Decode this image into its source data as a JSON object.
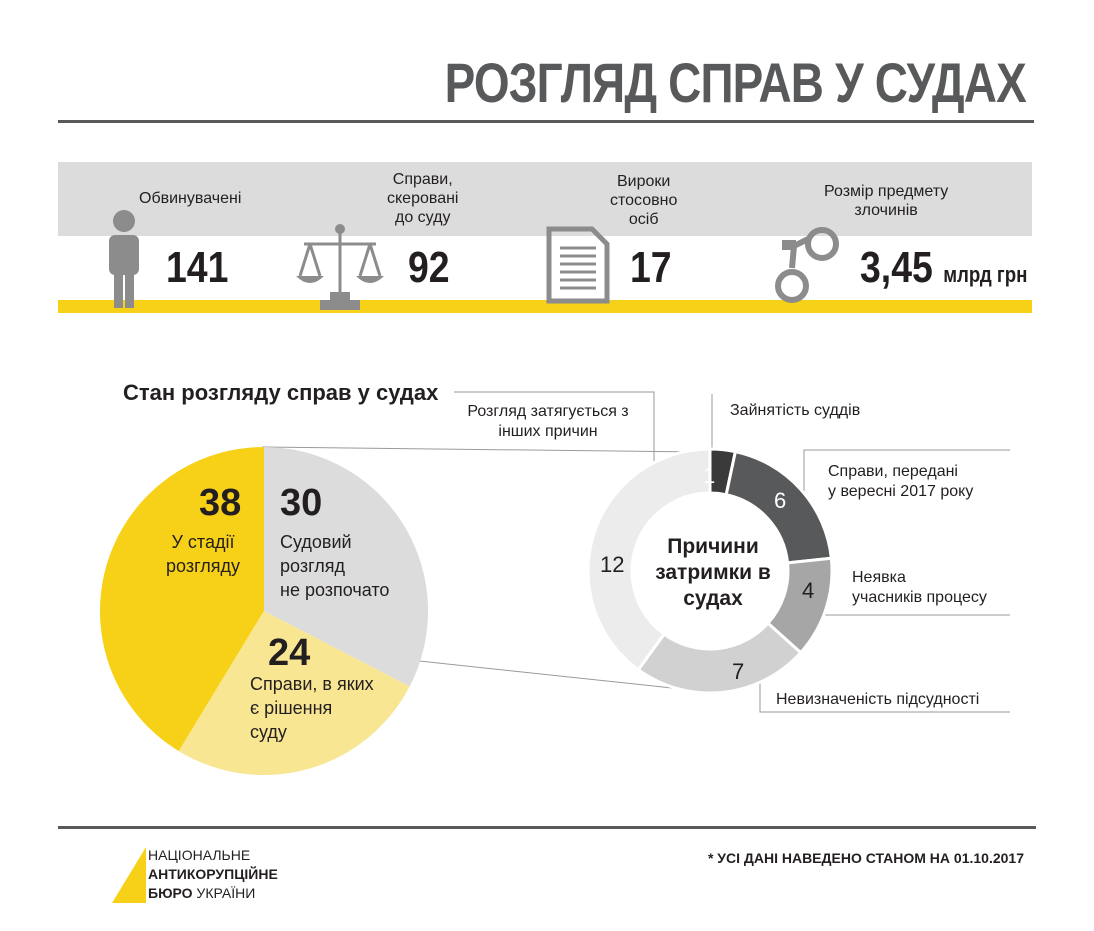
{
  "title": "РОЗГЛЯД СПРАВ У СУДАХ",
  "stats": [
    {
      "label": "Обвинувачені",
      "value": "141",
      "icon": "person-icon"
    },
    {
      "label_lines": [
        "Справи,",
        "скеровані",
        "до суду"
      ],
      "value": "92",
      "icon": "scales-icon"
    },
    {
      "label_lines": [
        "Вироки",
        "стосовно",
        "осіб"
      ],
      "value": "17",
      "icon": "document-icon"
    },
    {
      "label_lines": [
        "Розмір предмету",
        "злочинів"
      ],
      "value": "3,45",
      "unit": "млрд грн",
      "icon": "handcuffs-icon"
    }
  ],
  "colors": {
    "yellow": "#f7d117",
    "light_yellow": "#f8e693",
    "light_gray": "#dcdcdc",
    "band_gray": "#dcdcdc",
    "dark": "#58595b",
    "donut_palest": "#ececec",
    "donut_light": "#d1d1d1",
    "donut_mid": "#a6a6a6",
    "donut_dark": "#58595b",
    "donut_darkest": "#3a3a3a"
  },
  "chart_data": [
    {
      "type": "pie",
      "title": "Стан розгляду справ у судах",
      "slices": [
        {
          "value": 38,
          "label_lines": [
            "У стадії",
            "розгляду"
          ],
          "color": "#f7d117"
        },
        {
          "value": 30,
          "label_lines": [
            "Судовий",
            "розгляд",
            "не розпочато"
          ],
          "color": "#dcdcdc"
        },
        {
          "value": 24,
          "label_lines": [
            "Справи, в яких",
            "є рішення",
            "суду"
          ],
          "color": "#f8e693"
        }
      ]
    },
    {
      "type": "pie",
      "subtype": "donut",
      "center_label_lines": [
        "Причини",
        "затримки в",
        "судах"
      ],
      "slices": [
        {
          "value": 1,
          "label": "Зайнятість суддів",
          "color": "#3a3a3a"
        },
        {
          "value": 6,
          "label_lines": [
            "Справи, передані",
            "у вересні 2017 року"
          ],
          "color": "#58595b"
        },
        {
          "value": 4,
          "label_lines": [
            "Неявка",
            "учасників процесу"
          ],
          "color": "#a6a6a6"
        },
        {
          "value": 7,
          "label": "Невизначеність підсудності",
          "color": "#d1d1d1"
        },
        {
          "value": 12,
          "label_lines": [
            "Розгляд затягується з",
            "інших причин"
          ],
          "color": "#ececec"
        }
      ]
    }
  ],
  "logo": {
    "line1": "НАЦІОНАЛЬНЕ",
    "line2": "АНТИКОРУПЦІЙНЕ",
    "line3a": "БЮРО",
    "line3b": " УКРАЇНИ"
  },
  "footnote": "* УСІ ДАНІ НАВЕДЕНО СТАНОМ НА 01.10.2017"
}
